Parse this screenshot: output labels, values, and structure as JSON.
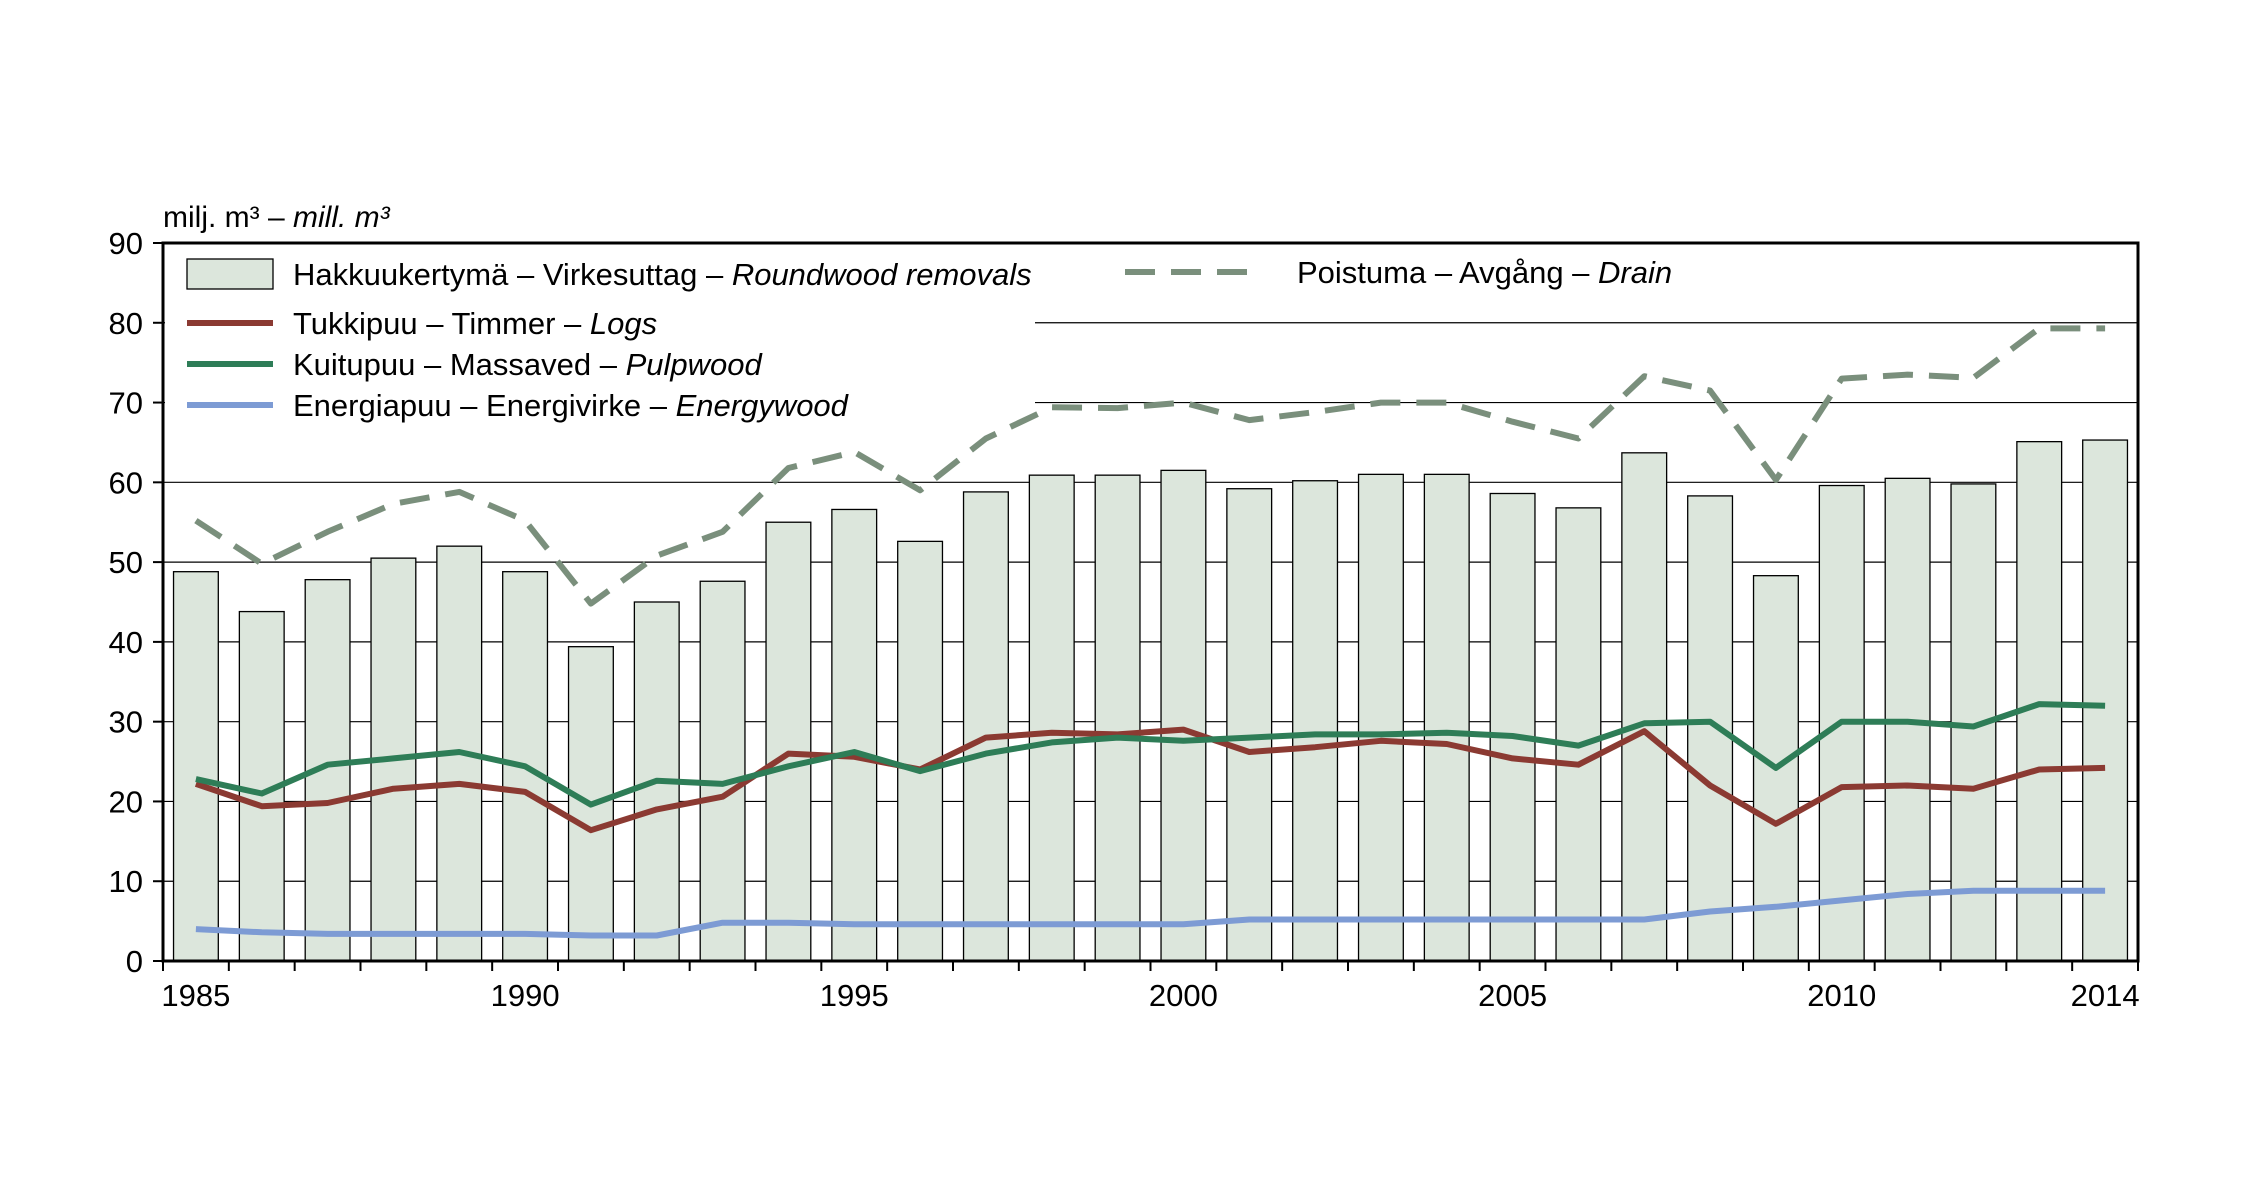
{
  "chart_data": {
    "type": "bar",
    "ylabel_parts": [
      "milj. m³ – ",
      "mill. m³"
    ],
    "ylim": [
      0,
      90
    ],
    "yticks": [
      "0",
      "10",
      "20",
      "30",
      "40",
      "50",
      "60",
      "70",
      "80",
      "90"
    ],
    "x": [
      1985,
      1986,
      1987,
      1988,
      1989,
      1990,
      1991,
      1992,
      1993,
      1994,
      1995,
      1996,
      1997,
      1998,
      1999,
      2000,
      2001,
      2002,
      2003,
      2004,
      2005,
      2006,
      2007,
      2008,
      2009,
      2010,
      2011,
      2012,
      2013,
      2014
    ],
    "xticks": [
      "1985",
      "1990",
      "1995",
      "2000",
      "2005",
      "2010",
      "2014"
    ],
    "grid": "horizontal",
    "legend_placement": "top",
    "series": [
      {
        "key": "roundwood",
        "kind": "bar",
        "name_parts": [
          "Hakkuukertymä – Virkesuttag – ",
          "Roundwood removals"
        ],
        "color": "#dce6dc",
        "values": [
          48.8,
          43.8,
          47.8,
          50.5,
          52.0,
          48.8,
          39.4,
          45.0,
          47.6,
          55.0,
          56.6,
          52.6,
          58.8,
          60.9,
          60.9,
          61.5,
          59.2,
          60.2,
          61.0,
          61.0,
          58.6,
          56.8,
          63.7,
          58.3,
          48.3,
          59.6,
          60.5,
          59.8,
          65.1,
          65.3
        ]
      },
      {
        "key": "drain",
        "kind": "dashed-line",
        "name_parts": [
          "Poistuma – Avgång – ",
          "Drain"
        ],
        "color": "#7a8f7c",
        "values": [
          55.2,
          49.8,
          53.8,
          57.3,
          58.8,
          55.2,
          44.8,
          50.8,
          53.8,
          61.8,
          63.8,
          59.0,
          65.5,
          69.4,
          69.3,
          70.0,
          67.8,
          68.8,
          70.0,
          70.0,
          67.6,
          65.5,
          73.3,
          71.5,
          60.3,
          73.0,
          73.5,
          73.1,
          79.3,
          79.3
        ]
      },
      {
        "key": "logs",
        "kind": "line",
        "name_parts": [
          "Tukkipuu – Timmer – ",
          "Logs"
        ],
        "color": "#8b3a32",
        "values": [
          22.2,
          19.4,
          19.8,
          21.6,
          22.2,
          21.2,
          16.4,
          19.0,
          20.6,
          26.0,
          25.6,
          24.0,
          28.0,
          28.6,
          28.4,
          29.0,
          26.2,
          26.8,
          27.6,
          27.2,
          25.4,
          24.6,
          28.8,
          22.0,
          17.2,
          21.8,
          22.0,
          21.6,
          24.0,
          24.2
        ]
      },
      {
        "key": "pulpwood",
        "kind": "line",
        "name_parts": [
          "Kuitupuu – Massaved – ",
          "Pulpwood"
        ],
        "color": "#2e7d57",
        "values": [
          22.8,
          21.0,
          24.6,
          25.4,
          26.2,
          24.4,
          19.6,
          22.6,
          22.2,
          24.4,
          26.2,
          23.8,
          26.0,
          27.4,
          28.0,
          27.6,
          28.0,
          28.4,
          28.4,
          28.6,
          28.2,
          27.0,
          29.8,
          30.0,
          24.2,
          30.0,
          30.0,
          29.4,
          32.2,
          32.0
        ]
      },
      {
        "key": "energywood",
        "kind": "line",
        "name_parts": [
          "Energiapuu – Energivirke – ",
          "Energywood"
        ],
        "color": "#7d9bd4",
        "values": [
          4.0,
          3.6,
          3.4,
          3.4,
          3.4,
          3.4,
          3.2,
          3.2,
          4.8,
          4.8,
          4.6,
          4.6,
          4.6,
          4.6,
          4.6,
          4.6,
          5.2,
          5.2,
          5.2,
          5.2,
          5.2,
          5.2,
          5.2,
          6.2,
          6.8,
          7.6,
          8.4,
          8.8,
          8.8,
          8.8
        ]
      }
    ]
  }
}
